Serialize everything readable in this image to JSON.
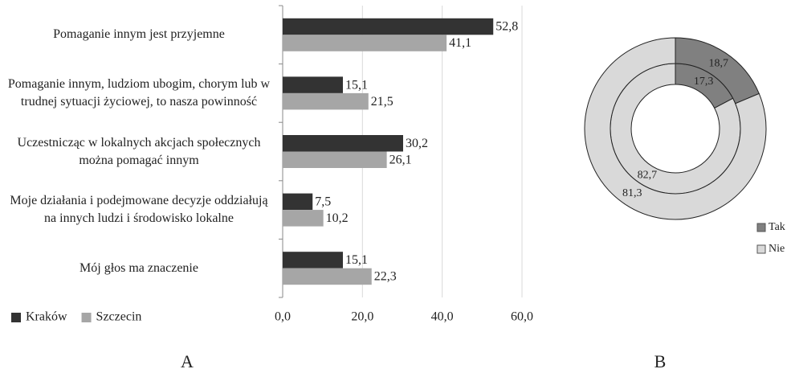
{
  "chart_data": [
    {
      "type": "bar",
      "orientation": "horizontal",
      "caption": "A",
      "categories": [
        "Pomaganie innym jest przyjemne",
        "Pomaganie innym, ludziom ubogim, chorym lub w trudnej sytuacji życiowej, to nasza powinność",
        "Uczestnicząc w lokalnych akcjach społecznych można pomagać innym",
        "Moje działania i podejmowane decyzje oddziałują na innych ludzi i środowisko lokalne",
        "Mój głos ma znaczenie"
      ],
      "series": [
        {
          "name": "Kraków",
          "color": "#333333",
          "values": [
            52.8,
            15.1,
            30.2,
            7.5,
            15.1
          ],
          "value_labels": [
            "52,8",
            "15,1",
            "30,2",
            "7,5",
            "15,1"
          ]
        },
        {
          "name": "Szczecin",
          "color": "#a6a6a6",
          "values": [
            41.1,
            21.5,
            26.1,
            10.2,
            22.3
          ],
          "value_labels": [
            "41,1",
            "21,5",
            "26,1",
            "10,2",
            "22,3"
          ]
        }
      ],
      "xlim": [
        0,
        60
      ],
      "xticks": [
        {
          "value": 0,
          "label": "0,0"
        },
        {
          "value": 20,
          "label": "20,0"
        },
        {
          "value": 40,
          "label": "40,0"
        },
        {
          "value": 60,
          "label": "60,0"
        }
      ],
      "grid": true,
      "legend": "bottom-left"
    },
    {
      "type": "doughnut",
      "caption": "B",
      "categories": [
        "Tak",
        "Nie"
      ],
      "colors": [
        "#808080",
        "#d9d9d9"
      ],
      "series": [
        {
          "values": [
            17.3,
            82.7
          ],
          "value_labels": [
            "17,3",
            "82,7"
          ]
        },
        {
          "values": [
            18.7,
            81.3
          ],
          "value_labels": [
            "18,7",
            "81,3"
          ]
        }
      ],
      "legend": "right"
    }
  ]
}
